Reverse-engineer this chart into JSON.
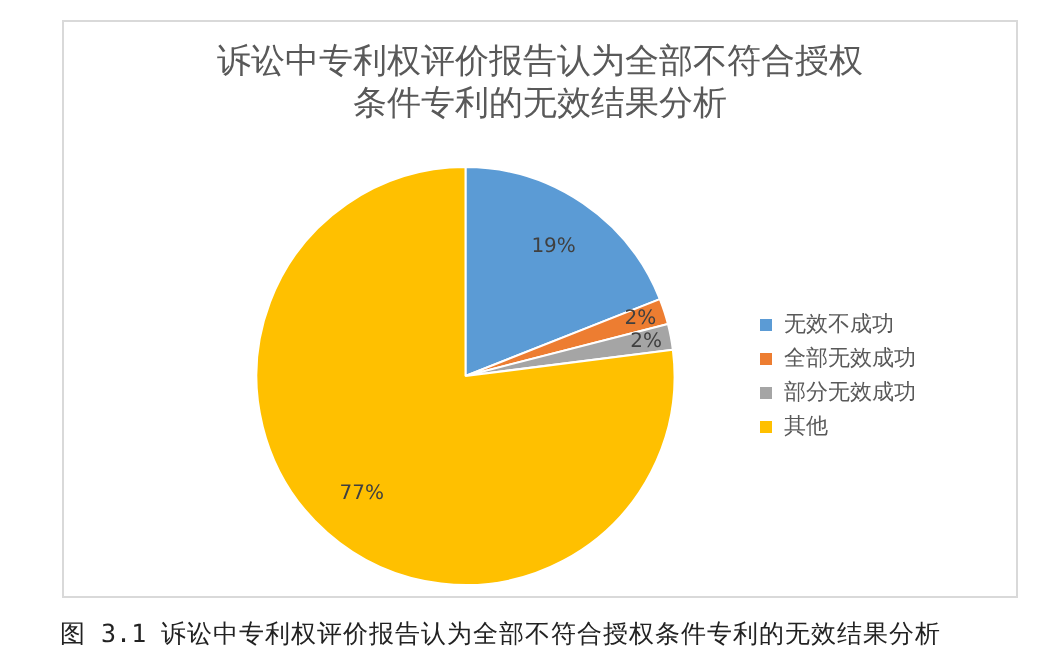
{
  "chart_data": {
    "type": "pie",
    "title": "诉讼中专利权评价报告认为全部不符合授权条件专利的无效结果分析",
    "categories": [
      "无效不成功",
      "全部无效成功",
      "部分无效成功",
      "其他"
    ],
    "values": [
      19,
      2,
      2,
      77
    ],
    "value_labels": [
      "19%",
      "2%",
      "2%",
      "77%"
    ],
    "colors": [
      "#5b9bd5",
      "#ed7d31",
      "#a5a5a5",
      "#ffc000"
    ],
    "legend": "right",
    "annotations": [
      "图 3.1 诉讼中专利权评价报告认为全部不符合授权条件专利的无效结果分析"
    ]
  }
}
